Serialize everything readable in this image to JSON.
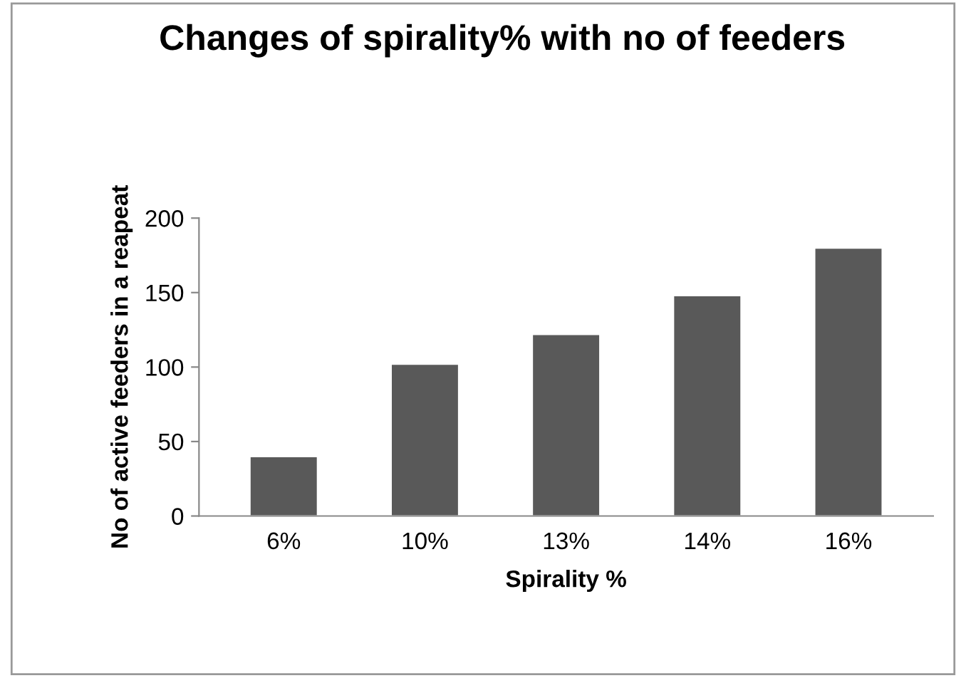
{
  "chart_data": {
    "type": "bar",
    "title": "Changes of spirality% with no of feeders",
    "xlabel": "Spirality %",
    "ylabel": "No of active feeders in a reapeat",
    "categories": [
      "6%",
      "10%",
      "13%",
      "14%",
      "16%"
    ],
    "values": [
      40,
      102,
      122,
      148,
      180
    ],
    "color": "#595959",
    "ylim": [
      0,
      200
    ],
    "yticks": [
      0,
      50,
      100,
      150,
      200
    ],
    "grid": false,
    "legend": false
  }
}
